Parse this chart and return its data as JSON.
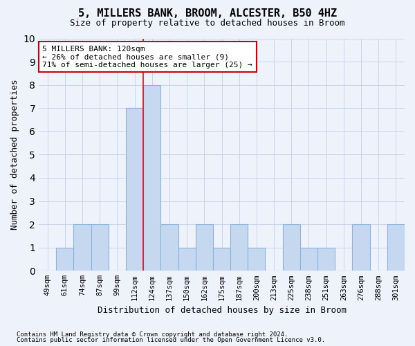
{
  "title1": "5, MILLERS BANK, BROOM, ALCESTER, B50 4HZ",
  "title2": "Size of property relative to detached houses in Broom",
  "xlabel": "Distribution of detached houses by size in Broom",
  "ylabel": "Number of detached properties",
  "categories": [
    "49sqm",
    "61sqm",
    "74sqm",
    "87sqm",
    "99sqm",
    "112sqm",
    "124sqm",
    "137sqm",
    "150sqm",
    "162sqm",
    "175sqm",
    "187sqm",
    "200sqm",
    "213sqm",
    "225sqm",
    "238sqm",
    "251sqm",
    "263sqm",
    "276sqm",
    "288sqm",
    "301sqm"
  ],
  "values": [
    0,
    1,
    2,
    2,
    0,
    7,
    8,
    2,
    1,
    2,
    1,
    2,
    1,
    0,
    2,
    1,
    1,
    0,
    2,
    0,
    2
  ],
  "bar_color": "#c5d8f0",
  "bar_edge_color": "#8ab4d8",
  "red_line_index": 5,
  "ylim": [
    0,
    10
  ],
  "yticks": [
    0,
    1,
    2,
    3,
    4,
    5,
    6,
    7,
    8,
    9,
    10
  ],
  "annotation_line1": "5 MILLERS BANK: 120sqm",
  "annotation_line2": "← 26% of detached houses are smaller (9)",
  "annotation_line3": "71% of semi-detached houses are larger (25) →",
  "annotation_box_color": "#ffffff",
  "annotation_box_edge": "#cc0000",
  "footer1": "Contains HM Land Registry data © Crown copyright and database right 2024.",
  "footer2": "Contains public sector information licensed under the Open Government Licence v3.0.",
  "bg_color": "#eef2fb",
  "plot_bg_color": "#eef2fb",
  "grid_color": "#c8d4e8",
  "title1_fontsize": 11,
  "title2_fontsize": 9,
  "ylabel_fontsize": 9,
  "xlabel_fontsize": 9,
  "tick_fontsize": 7.5,
  "footer_fontsize": 6.5,
  "ann_fontsize": 8
}
